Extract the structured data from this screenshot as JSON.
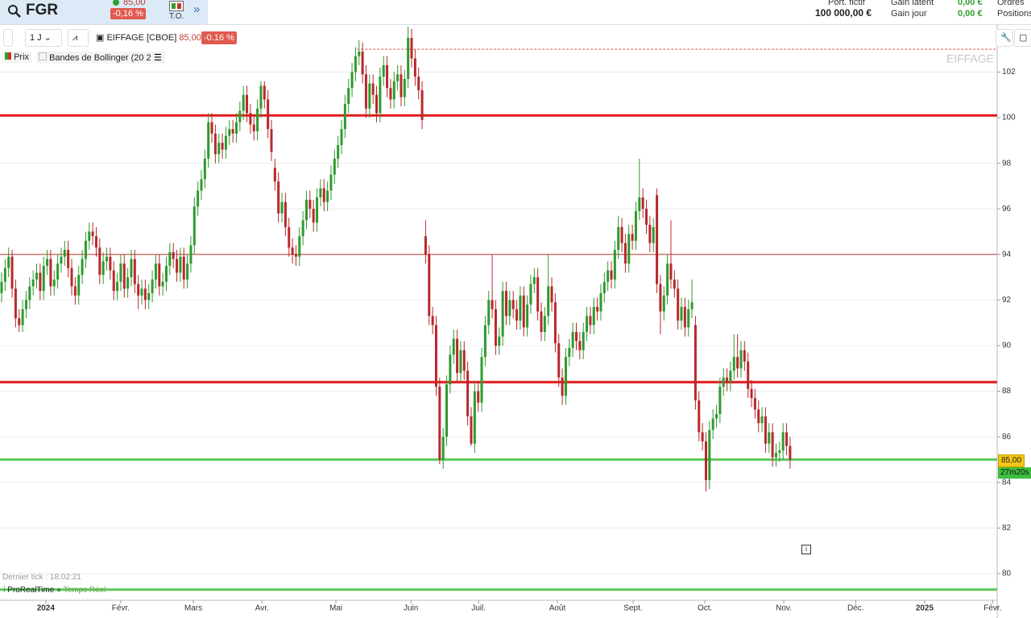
{
  "header": {
    "symbol": "FGR",
    "price": "85,00",
    "change": "-0,16 %",
    "to": "T.O.",
    "portfolio_label": "Port. fictif",
    "portfolio_value": "100 000,00 €",
    "gain_latent_label": "Gain latent",
    "gain_latent": "0,00 €",
    "gain_jour_label": "Gain jour",
    "gain_jour": "0,00 €",
    "orders": "Ordres",
    "positions": "Positions"
  },
  "toolbar": {
    "period": "1 J",
    "instrument": "EIFFAGE [CBOE]",
    "price": "85,00",
    "change": "-0.16 %",
    "legend_price": "Prix",
    "legend_bollinger": "Bandes de Bollinger (20 2)"
  },
  "watermark": "EIFFAGE",
  "footer": {
    "last_tick": "Dernier tick : 18:02:21",
    "brand": "ProRealTime",
    "realtime": "Temps Réel"
  },
  "price_tag": "85,00",
  "timer": "27m20s",
  "chart_data": {
    "type": "candlestick",
    "up_color": "#2e9a2e",
    "down_color": "#b8282c",
    "grid": true,
    "xlim": [
      -0.46,
      284.1
    ],
    "xticks": [
      {
        "value": 12.6,
        "label": "2024"
      },
      {
        "value": 34,
        "label": "Févr."
      },
      {
        "value": 54.7,
        "label": "Mars"
      },
      {
        "value": 74.3,
        "label": "Avr."
      },
      {
        "value": 95.4,
        "label": "Mai"
      },
      {
        "value": 116.8,
        "label": "Juin"
      },
      {
        "value": 136.1,
        "label": "Juil."
      },
      {
        "value": 158.6,
        "label": "Août"
      },
      {
        "value": 180.2,
        "label": "Sept."
      },
      {
        "value": 200.7,
        "label": "Oct."
      },
      {
        "value": 223.2,
        "label": "Nov."
      },
      {
        "value": 243.7,
        "label": "Déc."
      },
      {
        "value": 263.4,
        "label": "2025"
      },
      {
        "value": 282.8,
        "label": "Févr."
      }
    ],
    "ylim": [
      78.83,
      104.03
    ],
    "yticks": [
      80,
      82,
      84,
      86,
      88,
      90,
      92,
      94,
      96,
      98,
      100,
      102
    ],
    "levels": [
      {
        "value": 100.1,
        "color": "#e31a1c",
        "style": "thick"
      },
      {
        "value": 88.4,
        "color": "#e31a1c",
        "style": "thick"
      },
      {
        "value": 94.0,
        "color": "#c0392b",
        "style": "thin"
      },
      {
        "value": 85.0,
        "color": "#5ac85a",
        "style": "thick"
      },
      {
        "value": 79.3,
        "color": "#5ac85a",
        "style": "thick"
      },
      {
        "value": 103.0,
        "color": "#d9534f",
        "style": "dashed"
      }
    ],
    "open": [
      92.3,
      92.8,
      93.4,
      93.9,
      92.5,
      91.2,
      90.9,
      91.6,
      92.0,
      92.6,
      92.9,
      93.2,
      92.4,
      93.5,
      93.8,
      92.6,
      92.9,
      93.6,
      93.9,
      94.2,
      93.4,
      92.6,
      92.2,
      93.1,
      93.8,
      94.6,
      95.0,
      94.8,
      94.3,
      93.1,
      93.7,
      93.9,
      93.3,
      92.4,
      92.8,
      93.6,
      92.5,
      93.0,
      93.8,
      92.7,
      92.2,
      92.5,
      92.0,
      92.3,
      92.9,
      93.6,
      92.6,
      92.8,
      93.5,
      94.1,
      93.8,
      93.2,
      93.9,
      92.9,
      93.6,
      94.4,
      96.1,
      96.8,
      97.3,
      98.2,
      99.8,
      99.3,
      98.4,
      98.9,
      98.6,
      99.2,
      99.5,
      99.3,
      99.8,
      100.3,
      101.0,
      100.2,
      99.7,
      99.4,
      100.4,
      101.4,
      100.8,
      99.5,
      97.8,
      97.2,
      95.8,
      96.3,
      95.2,
      94.3,
      94.0,
      93.9,
      94.8,
      95.5,
      96.4,
      96.0,
      95.4,
      96.5,
      96.9,
      96.3,
      96.8,
      97.5,
      98.2,
      98.8,
      99.5,
      100.6,
      101.3,
      102.0,
      102.7,
      102.9,
      101.9,
      100.4,
      101.5,
      101.0,
      100.2,
      101.8,
      102.3,
      101.3,
      100.8,
      101.6,
      101.9,
      100.9,
      101.7,
      103.5,
      102.6,
      101.8,
      101.2,
      94.8,
      94.0,
      91.3,
      90.9,
      88.2,
      85.0,
      86.0,
      88.3,
      89.6,
      90.3,
      88.8,
      89.8,
      88.9,
      86.9,
      85.7,
      88.0,
      87.5,
      89.5,
      90.9,
      92.0,
      91.6,
      90.0,
      90.4,
      92.4,
      91.3,
      92.0,
      91.6,
      91.1,
      92.2,
      90.8,
      91.8,
      92.7,
      93.0,
      91.5,
      90.6,
      91.3,
      92.6,
      91.9,
      90.1,
      88.6,
      87.8,
      89.5,
      89.9,
      90.6,
      90.2,
      89.8,
      90.6,
      91.3,
      90.9,
      91.7,
      91.5,
      92.3,
      92.8,
      93.3,
      92.9,
      94.2,
      95.2,
      94.5,
      93.6,
      94.9,
      94.6,
      95.9,
      96.5,
      96.0,
      95.3,
      94.5,
      96.6,
      92.7,
      91.5,
      92.2,
      93.6,
      92.9,
      92.5,
      91.1,
      91.7,
      90.8,
      91.6,
      90.9,
      87.6,
      86.2,
      85.8,
      84.1,
      86.3,
      86.8,
      87.0,
      88.2,
      88.6,
      88.4,
      88.9,
      89.5,
      89.0,
      89.8,
      89.3,
      88.1,
      87.7,
      87.2,
      86.6,
      86.9,
      85.7,
      86.2,
      85.1,
      85.3,
      85.4,
      86.2,
      85.6
    ],
    "high": [
      93.2,
      93.8,
      94.3,
      94.2,
      92.9,
      91.6,
      92.0,
      92.4,
      93.0,
      93.3,
      93.6,
      93.6,
      93.9,
      94.2,
      94.2,
      93.3,
      94.0,
      94.3,
      94.6,
      94.6,
      93.8,
      93.0,
      93.5,
      94.2,
      95.0,
      95.4,
      95.4,
      95.2,
      94.7,
      94.1,
      94.3,
      94.3,
      93.7,
      93.2,
      94.0,
      94.0,
      93.4,
      94.2,
      94.2,
      93.1,
      92.9,
      92.9,
      92.7,
      93.3,
      94.0,
      94.0,
      93.2,
      93.9,
      94.5,
      94.5,
      94.2,
      94.3,
      94.3,
      94.0,
      94.8,
      96.5,
      97.2,
      97.7,
      98.6,
      100.2,
      100.2,
      99.7,
      99.3,
      99.3,
      99.6,
      99.9,
      99.9,
      100.2,
      100.7,
      101.4,
      101.4,
      100.6,
      100.1,
      100.8,
      101.6,
      101.6,
      101.2,
      99.9,
      98.2,
      97.6,
      96.7,
      96.7,
      95.6,
      94.7,
      94.4,
      95.2,
      95.9,
      96.8,
      96.8,
      96.4,
      96.9,
      97.3,
      97.3,
      97.2,
      97.9,
      98.6,
      99.2,
      99.9,
      101.0,
      101.7,
      102.4,
      103.1,
      103.4,
      103.3,
      102.3,
      101.9,
      101.9,
      101.4,
      102.2,
      102.7,
      102.7,
      101.7,
      102.0,
      102.3,
      102.3,
      102.1,
      104.0,
      103.9,
      103.0,
      102.2,
      101.6,
      95.5,
      94.4,
      91.7,
      91.3,
      88.6,
      86.4,
      88.7,
      90.0,
      90.7,
      90.7,
      90.2,
      90.2,
      89.3,
      87.3,
      88.4,
      88.4,
      89.9,
      91.3,
      92.4,
      94.0,
      92.0,
      90.8,
      92.8,
      92.8,
      92.4,
      92.4,
      92.0,
      92.6,
      92.6,
      92.2,
      93.1,
      93.4,
      93.4,
      91.9,
      91.7,
      94.0,
      93.0,
      92.3,
      90.5,
      89.0,
      89.9,
      90.3,
      91.0,
      91.0,
      90.6,
      91.0,
      91.7,
      91.7,
      92.1,
      92.1,
      92.7,
      93.2,
      93.7,
      93.7,
      94.6,
      95.7,
      95.6,
      94.9,
      95.3,
      95.3,
      96.3,
      98.2,
      96.9,
      96.4,
      95.7,
      95.6,
      96.9,
      93.1,
      92.6,
      94.0,
      95.5,
      93.3,
      92.9,
      92.1,
      92.1,
      92.0,
      92.9,
      91.3,
      88.0,
      86.6,
      86.2,
      86.7,
      87.2,
      87.4,
      88.6,
      89.0,
      89.0,
      89.3,
      90.5,
      90.5,
      90.2,
      90.2,
      89.7,
      88.5,
      88.1,
      87.6,
      87.3,
      87.3,
      86.6,
      86.6,
      85.7,
      85.8,
      86.6,
      86.6,
      86.0
    ],
    "low": [
      91.9,
      92.4,
      93.0,
      92.1,
      90.8,
      90.6,
      90.6,
      91.2,
      91.6,
      92.2,
      92.5,
      92.0,
      92.0,
      93.1,
      92.2,
      92.2,
      92.5,
      93.2,
      93.5,
      93.0,
      92.2,
      91.8,
      91.8,
      92.7,
      93.4,
      94.2,
      94.4,
      93.9,
      92.7,
      92.7,
      93.3,
      92.9,
      92.0,
      92.0,
      92.4,
      92.1,
      92.1,
      92.6,
      92.3,
      91.6,
      91.8,
      91.6,
      91.6,
      91.9,
      92.5,
      92.2,
      92.2,
      92.4,
      93.1,
      93.4,
      92.8,
      92.8,
      92.5,
      92.5,
      93.2,
      94.0,
      95.7,
      96.4,
      96.9,
      97.8,
      98.9,
      98.0,
      98.0,
      98.2,
      98.2,
      98.8,
      98.9,
      98.9,
      99.4,
      99.9,
      99.8,
      99.3,
      99.0,
      99.0,
      100.0,
      100.4,
      99.1,
      98.1,
      96.8,
      95.4,
      95.4,
      94.8,
      93.9,
      93.6,
      93.5,
      93.5,
      94.4,
      95.1,
      95.6,
      95.0,
      95.0,
      96.1,
      95.9,
      95.9,
      96.4,
      97.1,
      97.8,
      98.4,
      99.1,
      100.2,
      100.9,
      101.6,
      102.3,
      101.5,
      100.0,
      100.0,
      100.6,
      99.8,
      99.8,
      101.4,
      100.9,
      100.4,
      100.4,
      101.2,
      100.5,
      100.5,
      101.3,
      102.2,
      101.4,
      100.8,
      99.5,
      93.6,
      90.9,
      90.5,
      87.8,
      84.8,
      84.6,
      85.6,
      87.9,
      89.2,
      88.4,
      88.4,
      88.5,
      86.5,
      85.6,
      85.3,
      87.1,
      87.1,
      89.1,
      90.5,
      91.2,
      89.6,
      89.6,
      90.0,
      90.9,
      90.9,
      91.2,
      90.7,
      90.7,
      90.4,
      90.4,
      91.4,
      92.3,
      91.1,
      90.2,
      90.2,
      90.9,
      91.5,
      89.7,
      88.2,
      87.4,
      87.4,
      89.1,
      89.5,
      89.8,
      89.4,
      89.4,
      90.2,
      90.5,
      90.5,
      91.1,
      91.1,
      91.9,
      92.4,
      92.5,
      92.5,
      93.8,
      94.1,
      93.2,
      93.2,
      94.2,
      94.2,
      95.5,
      95.6,
      94.9,
      94.1,
      94.1,
      92.3,
      90.5,
      91.1,
      91.8,
      92.5,
      92.1,
      90.7,
      90.7,
      90.4,
      90.4,
      91.2,
      87.2,
      85.8,
      85.4,
      83.6,
      83.7,
      85.9,
      86.4,
      86.6,
      87.8,
      88.0,
      88.0,
      88.5,
      88.6,
      88.6,
      88.9,
      87.7,
      87.3,
      86.8,
      86.2,
      86.2,
      85.3,
      85.3,
      84.7,
      84.7,
      84.9,
      85.0,
      85.2,
      84.6
    ],
    "close": [
      92.8,
      93.4,
      93.9,
      92.5,
      91.2,
      90.9,
      91.6,
      92.0,
      92.6,
      92.9,
      93.2,
      92.4,
      93.5,
      93.8,
      92.6,
      92.9,
      93.6,
      93.9,
      94.2,
      93.4,
      92.6,
      92.2,
      93.1,
      93.8,
      94.6,
      95.0,
      94.8,
      94.3,
      93.1,
      93.7,
      93.9,
      93.3,
      92.4,
      92.8,
      93.6,
      92.5,
      93.0,
      93.8,
      92.7,
      92.2,
      92.5,
      92.0,
      92.3,
      92.9,
      93.6,
      92.6,
      92.8,
      93.5,
      94.1,
      93.8,
      93.2,
      93.9,
      92.9,
      93.6,
      94.4,
      96.1,
      96.8,
      97.3,
      98.2,
      99.8,
      99.3,
      98.4,
      98.9,
      98.6,
      99.2,
      99.5,
      99.3,
      99.8,
      100.3,
      101.0,
      100.2,
      99.7,
      99.4,
      100.4,
      101.4,
      100.8,
      99.5,
      98.5,
      97.2,
      95.8,
      96.3,
      95.2,
      94.3,
      94.0,
      93.9,
      94.8,
      95.5,
      96.4,
      96.0,
      95.4,
      96.5,
      96.9,
      96.3,
      96.8,
      97.5,
      98.2,
      98.8,
      99.5,
      100.6,
      101.3,
      102.0,
      102.7,
      102.9,
      101.9,
      100.4,
      101.5,
      101.0,
      100.2,
      101.8,
      102.3,
      101.3,
      100.8,
      101.6,
      101.9,
      100.9,
      101.7,
      103.5,
      102.6,
      101.8,
      101.2,
      99.9,
      94.0,
      91.3,
      90.9,
      88.2,
      85.0,
      86.0,
      88.3,
      89.6,
      90.3,
      88.8,
      89.8,
      88.9,
      86.9,
      85.7,
      88.0,
      87.5,
      89.5,
      90.9,
      92.0,
      91.6,
      90.0,
      90.4,
      92.4,
      91.3,
      92.0,
      91.6,
      91.1,
      92.2,
      90.8,
      91.8,
      92.7,
      93.0,
      91.5,
      90.6,
      91.3,
      92.6,
      91.9,
      90.1,
      88.6,
      87.8,
      89.5,
      89.9,
      90.6,
      90.2,
      89.8,
      90.6,
      91.3,
      90.9,
      91.7,
      91.5,
      92.3,
      92.8,
      93.3,
      92.9,
      94.2,
      95.2,
      94.5,
      93.6,
      94.9,
      94.6,
      95.9,
      96.5,
      96.0,
      95.3,
      94.5,
      95.2,
      92.7,
      91.5,
      92.2,
      93.6,
      92.9,
      92.5,
      91.1,
      91.7,
      90.8,
      91.6,
      91.9,
      87.6,
      86.2,
      85.8,
      84.1,
      86.3,
      86.8,
      87.0,
      88.2,
      88.6,
      88.4,
      88.9,
      89.5,
      89.0,
      89.8,
      89.3,
      88.1,
      87.7,
      87.2,
      86.6,
      86.9,
      85.7,
      86.2,
      85.1,
      85.3,
      85.4,
      86.2,
      85.6,
      85.0
    ]
  }
}
